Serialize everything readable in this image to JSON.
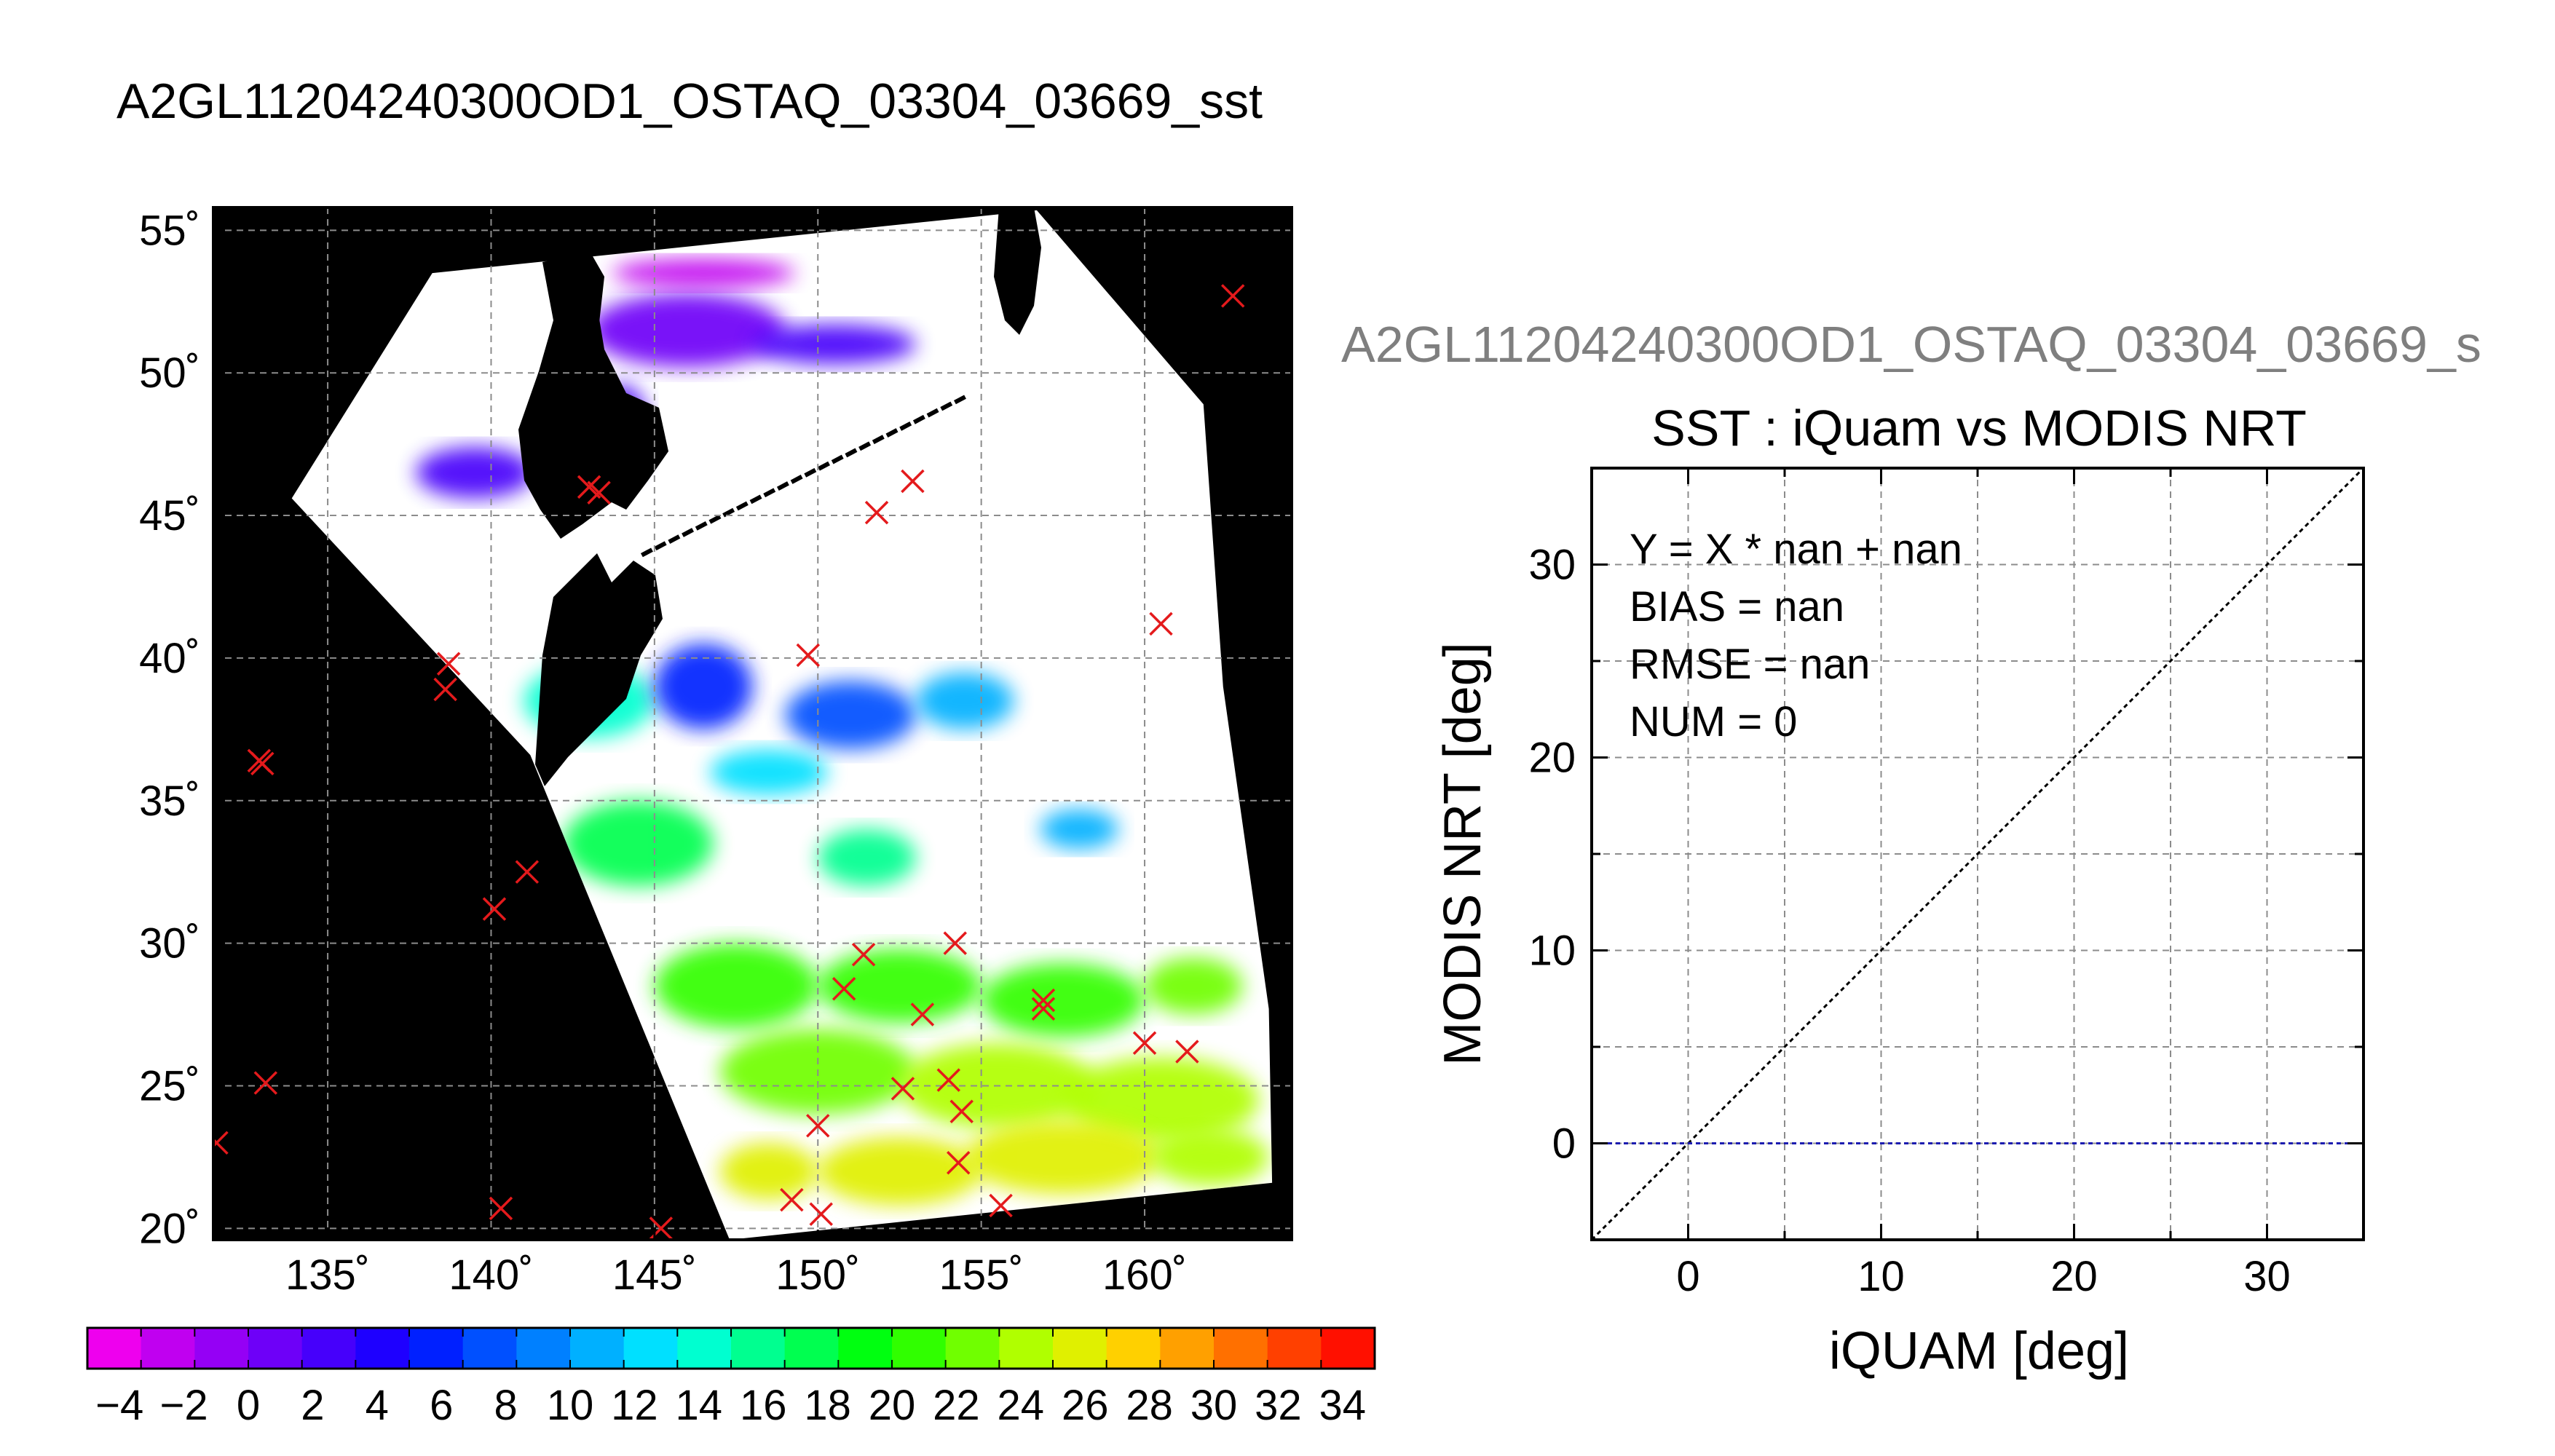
{
  "figure_title": "A2GL11204240300OD1_OSTAQ_03304_03669_sst",
  "secondary_title": "A2GL11204240300OD1_OSTAQ_03304_03669_s",
  "colors": {
    "land": "#000000",
    "cloud": "#ffffff",
    "marker": "#e41a1c",
    "one_to_one_line": "#000000",
    "zero_line": "#1c1cb0"
  },
  "chart_data": [
    {
      "type": "heatmap",
      "name": "sst-map",
      "xlim": [
        131.5,
        164.5
      ],
      "ylim": [
        19.6,
        55.8
      ],
      "grid": true,
      "x_ticks": [
        135,
        140,
        145,
        150,
        155,
        160
      ],
      "y_ticks": [
        20,
        25,
        30,
        35,
        40,
        45,
        50,
        55
      ],
      "x_tick_labels": [
        "135˚",
        "140˚",
        "145˚",
        "150˚",
        "155˚",
        "160˚"
      ],
      "y_tick_labels": [
        "20˚",
        "25˚",
        "30˚",
        "35˚",
        "40˚",
        "45˚",
        "50˚",
        "55˚"
      ],
      "swath_corners": [
        [
          133.9,
          45.6
        ],
        [
          138.2,
          53.5
        ],
        [
          156.7,
          55.7
        ],
        [
          161.8,
          48.9
        ],
        [
          162.4,
          39.0
        ],
        [
          163.8,
          27.7
        ],
        [
          163.9,
          21.6
        ],
        [
          147.3,
          19.6
        ],
        [
          141.2,
          36.6
        ]
      ],
      "sst_patches": [
        {
          "cx": 146.0,
          "cy": 51.5,
          "rx": 3.0,
          "ry": 1.3,
          "value": 0
        },
        {
          "cx": 150.5,
          "cy": 51.0,
          "rx": 2.5,
          "ry": 0.7,
          "value": 2
        },
        {
          "cx": 139.5,
          "cy": 46.5,
          "rx": 1.8,
          "ry": 0.9,
          "value": 2
        },
        {
          "cx": 146.5,
          "cy": 53.5,
          "rx": 2.8,
          "ry": 0.5,
          "value": -2
        },
        {
          "cx": 144.0,
          "cy": 48.0,
          "rx": 0.8,
          "ry": 1.6,
          "value": 2
        },
        {
          "cx": 143.0,
          "cy": 38.5,
          "rx": 2.0,
          "ry": 1.3,
          "value": 14
        },
        {
          "cx": 146.5,
          "cy": 39.0,
          "rx": 1.5,
          "ry": 1.5,
          "value": 6
        },
        {
          "cx": 151.0,
          "cy": 38.0,
          "rx": 2.0,
          "ry": 1.2,
          "value": 8
        },
        {
          "cx": 154.5,
          "cy": 38.5,
          "rx": 1.5,
          "ry": 1.0,
          "value": 10
        },
        {
          "cx": 144.5,
          "cy": 33.5,
          "rx": 2.3,
          "ry": 1.5,
          "value": 18
        },
        {
          "cx": 148.5,
          "cy": 36.0,
          "rx": 1.8,
          "ry": 0.8,
          "value": 12
        },
        {
          "cx": 151.5,
          "cy": 33.0,
          "rx": 1.5,
          "ry": 1.0,
          "value": 16
        },
        {
          "cx": 158.0,
          "cy": 34.0,
          "rx": 1.2,
          "ry": 0.7,
          "value": 10
        },
        {
          "cx": 147.5,
          "cy": 28.5,
          "rx": 2.5,
          "ry": 1.5,
          "value": 20
        },
        {
          "cx": 152.5,
          "cy": 28.5,
          "rx": 2.5,
          "ry": 1.3,
          "value": 20
        },
        {
          "cx": 157.5,
          "cy": 28.0,
          "rx": 2.5,
          "ry": 1.3,
          "value": 20
        },
        {
          "cx": 161.5,
          "cy": 28.5,
          "rx": 1.5,
          "ry": 1.0,
          "value": 22
        },
        {
          "cx": 150.0,
          "cy": 25.5,
          "rx": 3.0,
          "ry": 1.5,
          "value": 22
        },
        {
          "cx": 155.5,
          "cy": 25.0,
          "rx": 3.0,
          "ry": 1.5,
          "value": 24
        },
        {
          "cx": 160.5,
          "cy": 24.5,
          "rx": 3.0,
          "ry": 1.5,
          "value": 24
        },
        {
          "cx": 148.5,
          "cy": 22.0,
          "rx": 1.5,
          "ry": 1.0,
          "value": 26
        },
        {
          "cx": 152.5,
          "cy": 22.0,
          "rx": 2.5,
          "ry": 1.2,
          "value": 26
        },
        {
          "cx": 157.5,
          "cy": 22.5,
          "rx": 3.0,
          "ry": 1.3,
          "value": 26
        },
        {
          "cx": 162.0,
          "cy": 22.5,
          "rx": 1.8,
          "ry": 1.0,
          "value": 24
        }
      ],
      "match_points": [
        [
          162.7,
          52.7
        ],
        [
          143.0,
          46.0
        ],
        [
          143.3,
          45.8
        ],
        [
          152.9,
          46.2
        ],
        [
          151.8,
          45.1
        ],
        [
          138.7,
          39.8
        ],
        [
          138.6,
          38.9
        ],
        [
          149.7,
          40.1
        ],
        [
          160.5,
          41.2
        ],
        [
          132.9,
          36.4
        ],
        [
          133.0,
          36.3
        ],
        [
          141.1,
          32.5
        ],
        [
          140.1,
          31.2
        ],
        [
          151.4,
          29.6
        ],
        [
          154.2,
          30.0
        ],
        [
          150.8,
          28.4
        ],
        [
          153.2,
          27.5
        ],
        [
          156.9,
          28.0
        ],
        [
          156.9,
          27.7
        ],
        [
          160.0,
          26.5
        ],
        [
          161.3,
          26.2
        ],
        [
          133.1,
          25.1
        ],
        [
          152.6,
          24.9
        ],
        [
          154.0,
          25.2
        ],
        [
          154.4,
          24.1
        ],
        [
          131.6,
          23.0
        ],
        [
          150.0,
          23.6
        ],
        [
          154.3,
          22.3
        ],
        [
          140.3,
          20.7
        ],
        [
          149.2,
          21.0
        ],
        [
          150.1,
          20.5
        ],
        [
          155.6,
          20.8
        ],
        [
          145.2,
          20.0
        ]
      ],
      "colorbar": {
        "min": -5,
        "max": 35,
        "step": 2,
        "tick_labels": [
          "−4",
          "−2",
          "0",
          "2",
          "4",
          "6",
          "8",
          "10",
          "12",
          "14",
          "16",
          "18",
          "20",
          "22",
          "24",
          "26",
          "28",
          "30",
          "32",
          "34"
        ],
        "tick_values": [
          -4,
          -2,
          0,
          2,
          4,
          6,
          8,
          10,
          12,
          14,
          16,
          18,
          20,
          22,
          24,
          26,
          28,
          30,
          32,
          34
        ],
        "colors": [
          "#ee00ee",
          "#c000f0",
          "#9500f5",
          "#6e00f8",
          "#4600fb",
          "#1e00ff",
          "#0020ff",
          "#0050ff",
          "#0080ff",
          "#00b0ff",
          "#00e0ff",
          "#00ffd0",
          "#00ff90",
          "#00ff50",
          "#00ff10",
          "#30ff00",
          "#70ff00",
          "#b0ff00",
          "#e0f000",
          "#ffd000",
          "#ffa000",
          "#ff7000",
          "#ff4000",
          "#ff1000"
        ]
      }
    },
    {
      "type": "scatter",
      "name": "sst-scatter",
      "title": "SST : iQuam vs MODIS NRT",
      "xlabel": "iQUAM [deg]",
      "ylabel": "MODIS NRT [deg]",
      "xlim": [
        -5,
        35
      ],
      "ylim": [
        -5,
        35
      ],
      "grid": true,
      "x_ticks": [
        0,
        10,
        20,
        30
      ],
      "y_ticks": [
        0,
        10,
        20,
        30
      ],
      "x_tick_labels": [
        "0",
        "10",
        "20",
        "30"
      ],
      "y_tick_labels": [
        "0",
        "10",
        "20",
        "30"
      ],
      "series": [],
      "reference_lines": [
        {
          "type": "one-to-one",
          "from": [
            -5,
            -5
          ],
          "to": [
            35,
            35
          ]
        },
        {
          "type": "zero",
          "y": 0
        }
      ],
      "stats_text": [
        "Y = X * nan + nan",
        "BIAS = nan",
        "RMSE = nan",
        "NUM = 0"
      ]
    }
  ]
}
